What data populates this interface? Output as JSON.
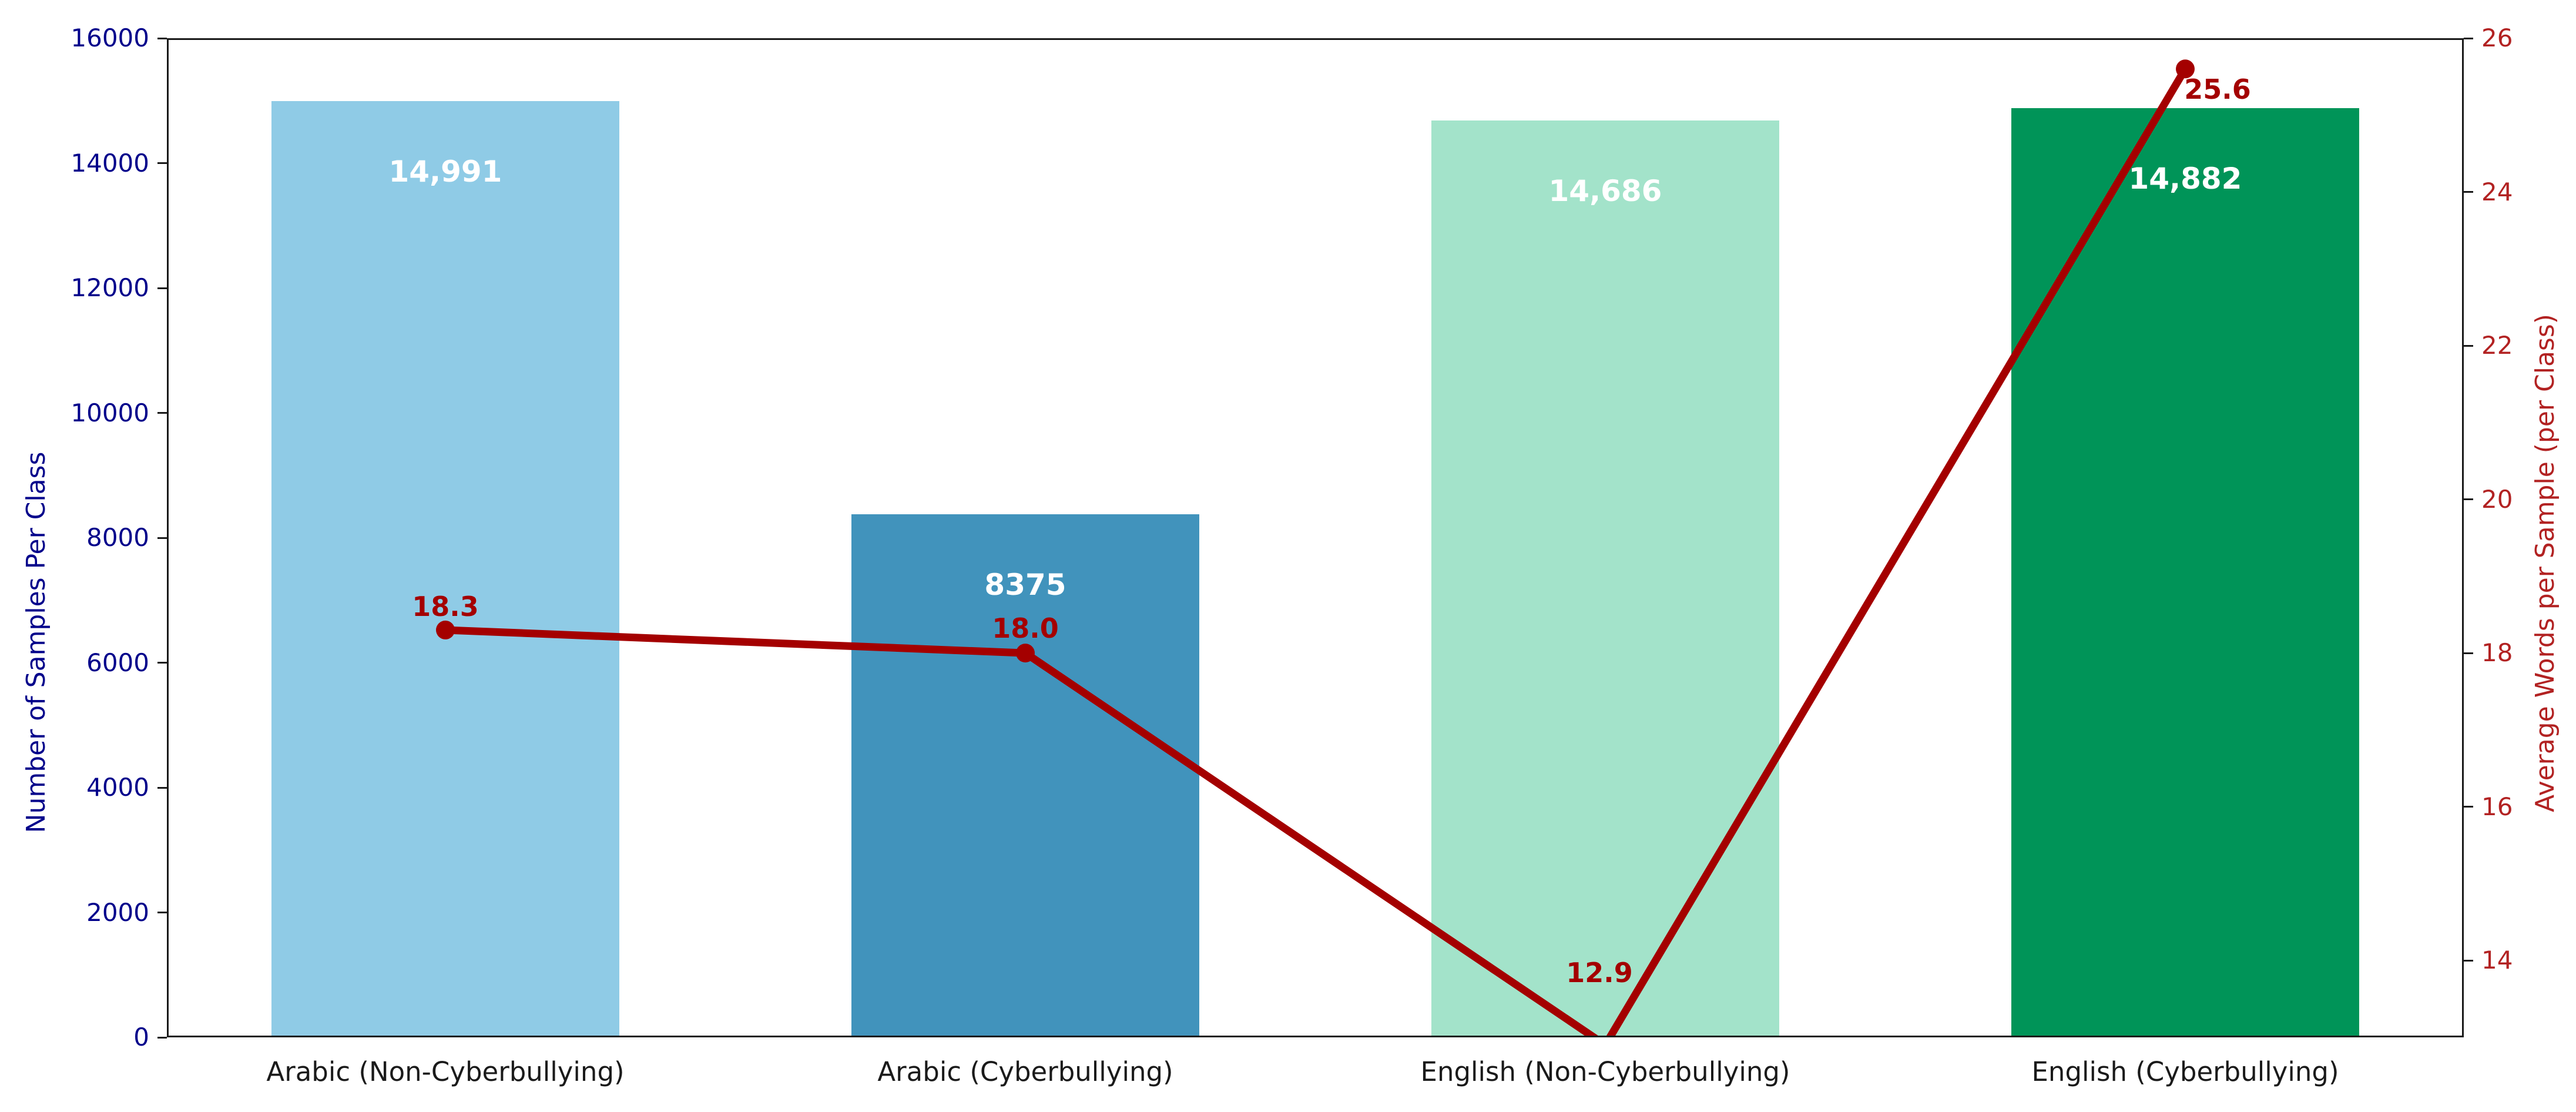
{
  "chart_data": {
    "type": "bar",
    "categories": [
      "Arabic (Non-Cyberbullying)",
      "Arabic (Cyberbullying)",
      "English (Non-Cyberbullying)",
      "English (Cyberbullying)"
    ],
    "series": [
      {
        "name": "Number of Samples Per Class",
        "type": "bar",
        "values": [
          14991,
          8375,
          14686,
          14882
        ],
        "labels": [
          "14,991",
          "8375",
          "14,686",
          "14,882"
        ],
        "bar_colors": [
          "#8FCBE6",
          "#4193BC",
          "#A3E3CA",
          "#009458"
        ],
        "label_color": "#FFFFFF"
      },
      {
        "name": "Average Words per Sample (per Class)",
        "type": "line",
        "values": [
          18.3,
          18.0,
          12.9,
          25.6
        ],
        "labels": [
          "18.3",
          "18.0",
          "12.9",
          "25.6"
        ],
        "color": "#A40000",
        "label_color": "#A40000"
      }
    ],
    "left_axis": {
      "label": "Number of Samples Per Class",
      "min": 0,
      "max": 16000,
      "tick_step": 2000,
      "tick_labels": [
        "0",
        "2000",
        "4000",
        "6000",
        "8000",
        "10000",
        "12000",
        "14000",
        "16000"
      ],
      "color": "#00008B"
    },
    "right_axis": {
      "label": "Average Words per Sample (per Class)",
      "min": 13,
      "max": 26,
      "tick_step": 2,
      "tick_labels": [
        "14",
        "16",
        "18",
        "20",
        "22",
        "24",
        "26"
      ],
      "color": "#B22222"
    },
    "grid": false,
    "legend": "none",
    "background": "#FFFFFF",
    "spine_color": "#1A1A1A",
    "xtick_label_color": "#1A1A1A"
  }
}
